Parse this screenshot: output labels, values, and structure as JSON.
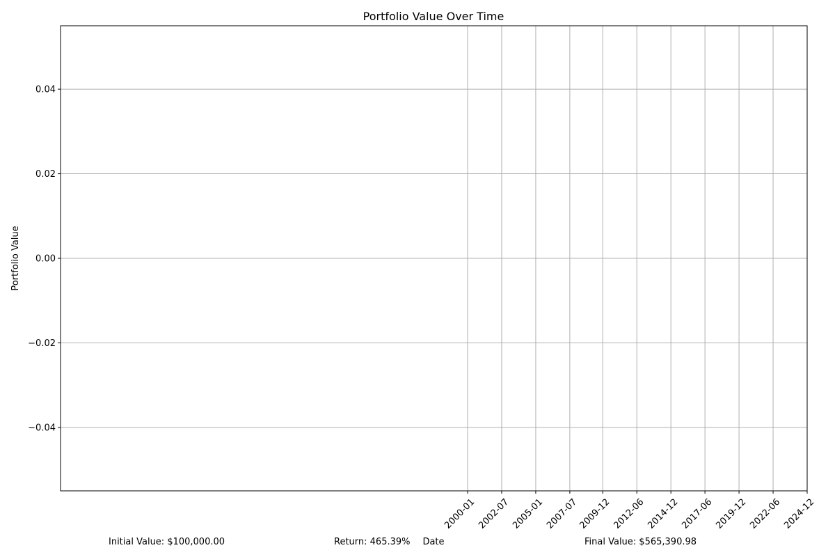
{
  "chart_data": {
    "type": "line",
    "title": "Portfolio Value Over Time",
    "xlabel": "Date",
    "ylabel": "Portfolio Value",
    "grid": true,
    "x_ticks": [
      "2000-01",
      "2002-07",
      "2005-01",
      "2007-07",
      "2009-12",
      "2012-06",
      "2014-12",
      "2017-06",
      "2019-12",
      "2022-06",
      "2024-12"
    ],
    "y_ticks": [
      0.04,
      0.02,
      0.0,
      -0.02,
      -0.04
    ],
    "y_tick_labels": [
      "0.04",
      "0.02",
      "0.00",
      "−0.02",
      "−0.04"
    ],
    "ylim": [
      -0.055,
      0.055
    ],
    "series": [
      {
        "values": []
      }
    ]
  },
  "summary": {
    "initial_value": "Initial Value: $100,000.00",
    "return": "Return: 465.39%",
    "final_value": "Final Value: $565,390.98"
  },
  "colors": {
    "grid": "#b0b0b0",
    "axis": "#000000"
  }
}
